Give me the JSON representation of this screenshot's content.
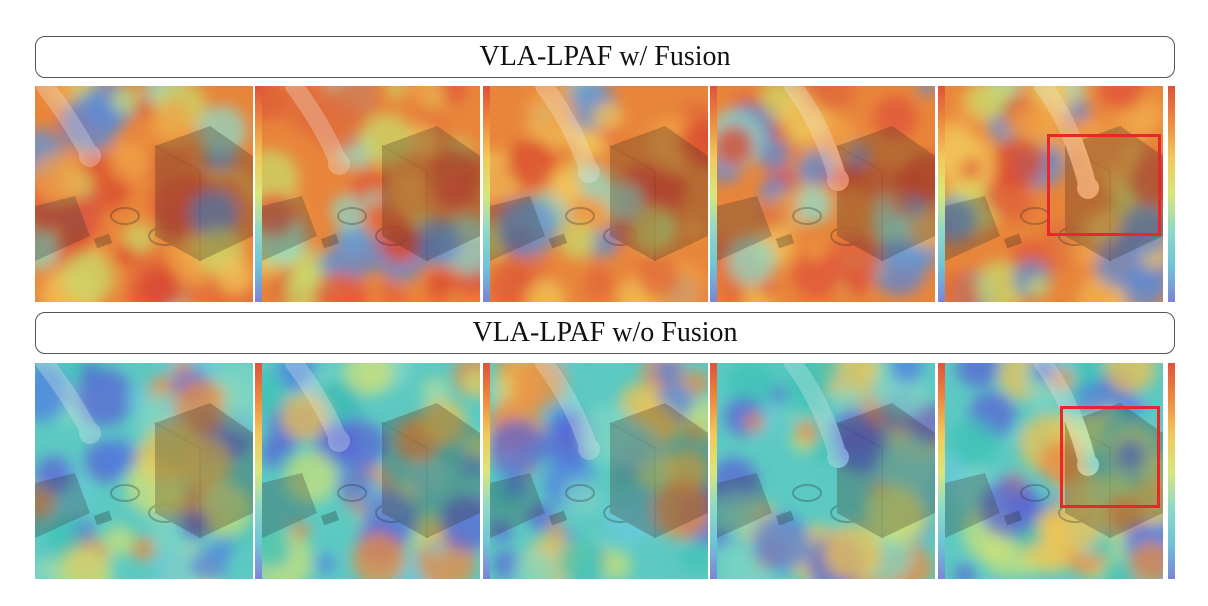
{
  "panels": [
    {
      "id": "top",
      "title": "VLA-LPAF w/ Fusion",
      "tone": "warm",
      "frame_count": 5,
      "highlight_frame": 5
    },
    {
      "id": "bottom",
      "title": "VLA-LPAF w/o Fusion",
      "tone": "cool",
      "frame_count": 5,
      "highlight_frame": 5
    }
  ],
  "colors": {
    "highlight": "#e8262b",
    "warm_base": "#e8853a",
    "cool_base": "#5cc9c2"
  },
  "colorbar": [
    "#e0523a",
    "#ee8a3e",
    "#f1c95a",
    "#d9e67a",
    "#8fd9c8",
    "#6fc4d6",
    "#7d83d6"
  ]
}
